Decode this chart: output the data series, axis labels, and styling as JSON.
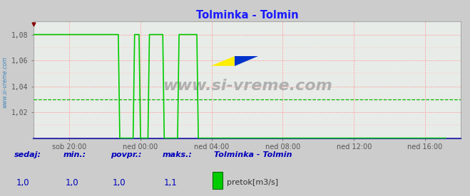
{
  "title": "Tolminka - Tolmin",
  "title_color": "#1a1aff",
  "bg_color": "#cccccc",
  "plot_bg_color": "#e8ece8",
  "grid_color": "#ff9999",
  "avg_line_color": "#00bb00",
  "avg_line_value": 1.03,
  "line_color": "#00cc00",
  "line_width": 1.2,
  "xmin": 0,
  "xmax": 288,
  "ymin": 1.0,
  "ymax": 1.09,
  "ytick_vals": [
    1.02,
    1.04,
    1.06,
    1.08
  ],
  "ytick_labels": [
    "1,02",
    "1,04",
    "1,06",
    "1,08"
  ],
  "xtick_labels": [
    "sob 20:00",
    "ned 00:00",
    "ned 04:00",
    "ned 08:00",
    "ned 12:00",
    "ned 16:00"
  ],
  "xtick_positions": [
    24,
    72,
    120,
    168,
    216,
    264
  ],
  "watermark": "www.si-vreme.com",
  "sidebar_text": "www.si-vreme.com",
  "footer_labels": [
    "sedaj:",
    "min.:",
    "povpr.:",
    "maks.:"
  ],
  "footer_values": [
    "1,0",
    "1,0",
    "1,0",
    "1,1"
  ],
  "footer_station": "Tolminka - Tolmin",
  "footer_legend_label": "pretok[m3/s]",
  "footer_legend_color": "#00cc00",
  "label_color": "#0000bb",
  "axis_color": "#3333aa",
  "tick_color": "#555555",
  "arrow_color": "#880000",
  "spine_color": "#aaaaaa",
  "flow_data": [
    1.08,
    1.08,
    1.08,
    1.08,
    1.08,
    1.08,
    1.08,
    1.08,
    1.08,
    1.08,
    1.08,
    1.08,
    1.08,
    1.08,
    1.08,
    1.08,
    1.08,
    1.08,
    1.08,
    1.08,
    1.08,
    1.08,
    1.08,
    1.08,
    1.08,
    1.08,
    1.08,
    1.08,
    1.08,
    1.08,
    1.08,
    1.08,
    1.08,
    1.08,
    1.08,
    1.08,
    1.08,
    1.08,
    1.08,
    1.08,
    1.08,
    1.08,
    1.08,
    1.08,
    1.08,
    1.08,
    1.08,
    1.08,
    1.08,
    1.08,
    1.08,
    1.08,
    1.08,
    1.08,
    1.08,
    1.08,
    1.08,
    1.08,
    1.0,
    1.0,
    1.0,
    1.0,
    1.0,
    1.0,
    1.0,
    1.0,
    1.0,
    1.0,
    1.08,
    1.08,
    1.08,
    1.08,
    1.0,
    1.0,
    1.0,
    1.0,
    1.0,
    1.0,
    1.08,
    1.08,
    1.08,
    1.08,
    1.08,
    1.08,
    1.08,
    1.08,
    1.08,
    1.08,
    1.0,
    1.0,
    1.0,
    1.0,
    1.0,
    1.0,
    1.0,
    1.0,
    1.0,
    1.0,
    1.08,
    1.08,
    1.08,
    1.08,
    1.08,
    1.08,
    1.08,
    1.08,
    1.08,
    1.08,
    1.08,
    1.08,
    1.08,
    1.0,
    1.0,
    1.0,
    1.0,
    1.0,
    1.0,
    1.0,
    1.0,
    1.0,
    1.0,
    1.0,
    1.0,
    1.0,
    1.0,
    1.0,
    1.0,
    1.0,
    1.0,
    1.0,
    1.0,
    1.0,
    1.0,
    1.0,
    1.0,
    1.0,
    1.0,
    1.0,
    1.0,
    1.0,
    1.0,
    1.0,
    1.0,
    1.0,
    1.0,
    1.0,
    1.0,
    1.0,
    1.0,
    1.0,
    1.0,
    1.0,
    1.0,
    1.0,
    1.0,
    1.0,
    1.0,
    1.0,
    1.0,
    1.0,
    1.0,
    1.0,
    1.0,
    1.0,
    1.0,
    1.0,
    1.0,
    1.0,
    1.0,
    1.0,
    1.0,
    1.0,
    1.0,
    1.0,
    1.0,
    1.0,
    1.0,
    1.0,
    1.0,
    1.0,
    1.0,
    1.0,
    1.0,
    1.0,
    1.0,
    1.0,
    1.0,
    1.0,
    1.0,
    1.0,
    1.0,
    1.0,
    1.0,
    1.0,
    1.0,
    1.0,
    1.0,
    1.0,
    1.0,
    1.0,
    1.0,
    1.0,
    1.0,
    1.0,
    1.0,
    1.0,
    1.0,
    1.0,
    1.0,
    1.0,
    1.0,
    1.0,
    1.0,
    1.0,
    1.0,
    1.0,
    1.0,
    1.0,
    1.0,
    1.0,
    1.0,
    1.0,
    1.0,
    1.0,
    1.0,
    1.0,
    1.0,
    1.0,
    1.0,
    1.0,
    1.0,
    1.0,
    1.0,
    1.0,
    1.0,
    1.0,
    1.0,
    1.0,
    1.0,
    1.0,
    1.0,
    1.0,
    1.0,
    1.0,
    1.0,
    1.0,
    1.0,
    1.0,
    1.0,
    1.0,
    1.0,
    1.0,
    1.0,
    1.0,
    1.0,
    1.0,
    1.0,
    1.0,
    1.0,
    1.0,
    1.0,
    1.0,
    1.0,
    1.0,
    1.0,
    1.0,
    1.0,
    1.0,
    1.0,
    1.0,
    1.0,
    1.0,
    1.0,
    1.0,
    1.0,
    1.0,
    1.0,
    1.0,
    1.0
  ]
}
